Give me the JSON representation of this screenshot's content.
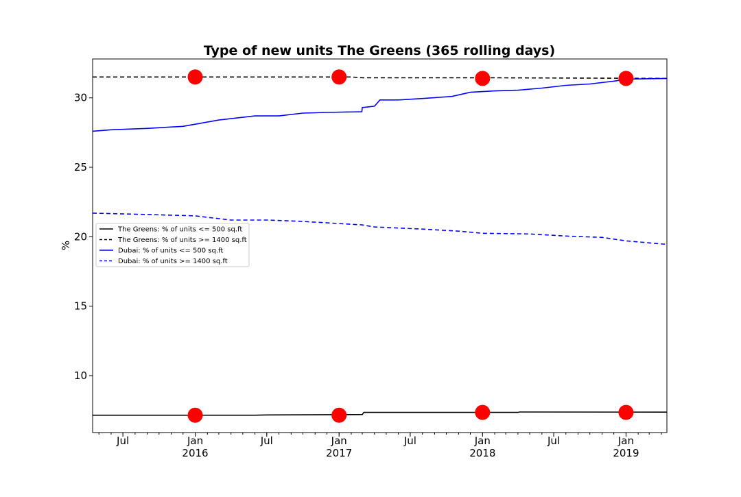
{
  "chart_data": {
    "type": "line",
    "title": "Type of new units The Greens (365 rolling days)",
    "xlabel": "",
    "ylabel": "%",
    "x_range": [
      "2015-04-15",
      "2019-04-15"
    ],
    "ylim": [
      5.9,
      32.8
    ],
    "yticks": [
      10,
      15,
      20,
      25,
      30
    ],
    "xticks": [
      {
        "date": "2015-07-01",
        "label": "Jul",
        "sub": ""
      },
      {
        "date": "2016-01-01",
        "label": "Jan",
        "sub": "2016"
      },
      {
        "date": "2016-07-01",
        "label": "Jul",
        "sub": ""
      },
      {
        "date": "2017-01-01",
        "label": "Jan",
        "sub": "2017"
      },
      {
        "date": "2017-07-01",
        "label": "Jul",
        "sub": ""
      },
      {
        "date": "2018-01-01",
        "label": "Jan",
        "sub": "2018"
      },
      {
        "date": "2018-07-01",
        "label": "Jul",
        "sub": ""
      },
      {
        "date": "2019-01-01",
        "label": "Jan",
        "sub": "2019"
      }
    ],
    "grid": false,
    "legend_position": "center-left",
    "series": [
      {
        "name": "The Greens: % of units <= 500 sq.ft",
        "color": "#000000",
        "style": "solid",
        "points": [
          [
            "2015-04-15",
            7.15
          ],
          [
            "2016-06-01",
            7.15
          ],
          [
            "2016-07-01",
            7.17
          ],
          [
            "2017-03-01",
            7.2
          ],
          [
            "2017-03-05",
            7.35
          ],
          [
            "2018-04-01",
            7.35
          ],
          [
            "2018-04-05",
            7.38
          ],
          [
            "2019-04-15",
            7.37
          ]
        ]
      },
      {
        "name": "The Greens: % of units >= 1400 sq.ft",
        "color": "#000000",
        "style": "dashed",
        "points": [
          [
            "2015-04-15",
            31.5
          ],
          [
            "2017-02-01",
            31.5
          ],
          [
            "2017-03-01",
            31.45
          ],
          [
            "2018-01-15",
            31.45
          ],
          [
            "2019-04-15",
            31.4
          ]
        ]
      },
      {
        "name": "Dubai: % of units <= 500 sq.ft",
        "color": "#0000ff",
        "style": "solid",
        "points": [
          [
            "2015-04-15",
            27.6
          ],
          [
            "2015-06-01",
            27.7
          ],
          [
            "2015-09-01",
            27.8
          ],
          [
            "2015-12-01",
            27.95
          ],
          [
            "2016-01-01",
            28.1
          ],
          [
            "2016-03-01",
            28.4
          ],
          [
            "2016-06-01",
            28.7
          ],
          [
            "2016-08-01",
            28.7
          ],
          [
            "2016-10-01",
            28.9
          ],
          [
            "2016-12-01",
            28.95
          ],
          [
            "2017-02-28",
            29.0
          ],
          [
            "2017-03-01",
            29.3
          ],
          [
            "2017-04-01",
            29.4
          ],
          [
            "2017-04-15",
            29.85
          ],
          [
            "2017-06-01",
            29.85
          ],
          [
            "2017-08-01",
            29.95
          ],
          [
            "2017-10-15",
            30.1
          ],
          [
            "2017-12-01",
            30.4
          ],
          [
            "2018-02-01",
            30.5
          ],
          [
            "2018-04-01",
            30.55
          ],
          [
            "2018-06-01",
            30.7
          ],
          [
            "2018-08-01",
            30.9
          ],
          [
            "2018-10-01",
            31.0
          ],
          [
            "2018-12-01",
            31.2
          ],
          [
            "2019-01-01",
            31.35
          ],
          [
            "2019-04-15",
            31.4
          ]
        ]
      },
      {
        "name": "Dubai: % of units >= 1400 sq.ft",
        "color": "#0000ff",
        "style": "dashed",
        "points": [
          [
            "2015-04-15",
            21.7
          ],
          [
            "2015-09-01",
            21.6
          ],
          [
            "2016-01-01",
            21.5
          ],
          [
            "2016-04-01",
            21.2
          ],
          [
            "2016-07-01",
            21.2
          ],
          [
            "2016-10-01",
            21.1
          ],
          [
            "2017-01-01",
            20.95
          ],
          [
            "2017-03-01",
            20.85
          ],
          [
            "2017-04-01",
            20.7
          ],
          [
            "2017-08-01",
            20.55
          ],
          [
            "2017-11-01",
            20.4
          ],
          [
            "2018-01-01",
            20.25
          ],
          [
            "2018-05-01",
            20.2
          ],
          [
            "2018-08-01",
            20.05
          ],
          [
            "2018-11-01",
            19.95
          ],
          [
            "2019-01-01",
            19.7
          ],
          [
            "2019-04-15",
            19.45
          ]
        ]
      }
    ],
    "markers": {
      "color": "#ff0000",
      "points": [
        [
          "2016-01-01",
          31.5
        ],
        [
          "2017-01-01",
          31.5
        ],
        [
          "2018-01-01",
          31.4
        ],
        [
          "2019-01-01",
          31.4
        ],
        [
          "2016-01-01",
          7.15
        ],
        [
          "2017-01-01",
          7.15
        ],
        [
          "2018-01-01",
          7.35
        ],
        [
          "2019-01-01",
          7.35
        ]
      ]
    }
  }
}
